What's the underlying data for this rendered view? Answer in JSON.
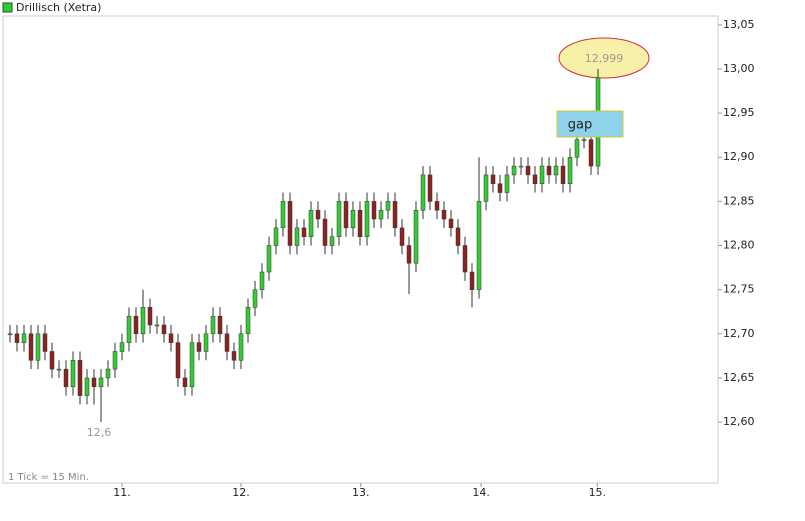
{
  "chart_data": {
    "type": "candlestick",
    "name": "Drillisch (Xetra)",
    "up_color": "#33cc33",
    "down_color": "#8b2323",
    "x": [
      1,
      2,
      3,
      4,
      5,
      6,
      7,
      8,
      9,
      10,
      11,
      12,
      13,
      14,
      15,
      16,
      17,
      18,
      19,
      20,
      21,
      22,
      23,
      24,
      25,
      26,
      27,
      28,
      29,
      30,
      31,
      32,
      33,
      34,
      35,
      36,
      37,
      38,
      39,
      40,
      41,
      42,
      43,
      44,
      45,
      46,
      47,
      48,
      49,
      50,
      51,
      52,
      53,
      54,
      55,
      56,
      57,
      58,
      59,
      60,
      61,
      62,
      63,
      64,
      65,
      66,
      67,
      68,
      69,
      70,
      71,
      72,
      73,
      74,
      75,
      76,
      77,
      78,
      79,
      80,
      81,
      82,
      83,
      84,
      85
    ],
    "open": [
      12.7,
      12.7,
      12.69,
      12.7,
      12.67,
      12.7,
      12.68,
      12.66,
      12.66,
      12.64,
      12.67,
      12.63,
      12.65,
      12.64,
      12.65,
      12.66,
      12.68,
      12.69,
      12.72,
      12.7,
      12.73,
      12.71,
      12.71,
      12.7,
      12.69,
      12.65,
      12.64,
      12.69,
      12.68,
      12.7,
      12.72,
      12.7,
      12.68,
      12.67,
      12.7,
      12.73,
      12.75,
      12.77,
      12.8,
      12.82,
      12.85,
      12.8,
      12.82,
      12.81,
      12.84,
      12.83,
      12.8,
      12.81,
      12.85,
      12.82,
      12.84,
      12.81,
      12.85,
      12.83,
      12.84,
      12.85,
      12.82,
      12.8,
      12.78,
      12.84,
      12.88,
      12.85,
      12.84,
      12.83,
      12.82,
      12.8,
      12.77,
      12.75,
      12.85,
      12.88,
      12.87,
      12.86,
      12.88,
      12.89,
      12.89,
      12.88,
      12.87,
      12.89,
      12.88,
      12.89,
      12.87,
      12.9,
      12.92,
      12.92,
      12.89
    ],
    "high": [
      12.71,
      12.71,
      12.71,
      12.71,
      12.71,
      12.71,
      12.69,
      12.67,
      12.67,
      12.68,
      12.68,
      12.66,
      12.66,
      12.66,
      12.67,
      12.69,
      12.7,
      12.73,
      12.73,
      12.75,
      12.74,
      12.72,
      12.72,
      12.71,
      12.7,
      12.66,
      12.7,
      12.7,
      12.71,
      12.73,
      12.73,
      12.71,
      12.69,
      12.71,
      12.74,
      12.76,
      12.78,
      12.81,
      12.83,
      12.86,
      12.86,
      12.83,
      12.83,
      12.85,
      12.85,
      12.84,
      12.82,
      12.86,
      12.86,
      12.85,
      12.85,
      12.86,
      12.86,
      12.85,
      12.86,
      12.86,
      12.83,
      12.81,
      12.85,
      12.89,
      12.89,
      12.86,
      12.85,
      12.84,
      12.83,
      12.81,
      12.78,
      12.9,
      12.89,
      12.89,
      12.88,
      12.89,
      12.9,
      12.9,
      12.9,
      12.89,
      12.9,
      12.9,
      12.9,
      12.9,
      12.91,
      12.93,
      12.93,
      12.93,
      13.0
    ],
    "low": [
      12.69,
      12.68,
      12.68,
      12.66,
      12.66,
      12.67,
      12.65,
      12.65,
      12.63,
      12.63,
      12.62,
      12.62,
      12.62,
      12.6,
      12.64,
      12.65,
      12.67,
      12.68,
      12.69,
      12.69,
      12.7,
      12.7,
      12.69,
      12.68,
      12.64,
      12.63,
      12.63,
      12.67,
      12.67,
      12.69,
      12.69,
      12.67,
      12.66,
      12.66,
      12.69,
      12.72,
      12.74,
      12.76,
      12.79,
      12.81,
      12.79,
      12.79,
      12.8,
      12.8,
      12.82,
      12.79,
      12.79,
      12.8,
      12.81,
      12.81,
      12.8,
      12.8,
      12.82,
      12.82,
      12.83,
      12.81,
      12.79,
      12.745,
      12.77,
      12.83,
      12.84,
      12.83,
      12.82,
      12.81,
      12.79,
      12.76,
      12.73,
      12.74,
      12.84,
      12.86,
      12.85,
      12.85,
      12.87,
      12.88,
      12.87,
      12.86,
      12.86,
      12.87,
      12.87,
      12.86,
      12.86,
      12.89,
      12.91,
      12.88,
      12.88
    ],
    "close": [
      12.7,
      12.69,
      12.7,
      12.67,
      12.7,
      12.68,
      12.66,
      12.66,
      12.64,
      12.67,
      12.63,
      12.65,
      12.64,
      12.65,
      12.66,
      12.68,
      12.69,
      12.72,
      12.7,
      12.73,
      12.71,
      12.71,
      12.7,
      12.69,
      12.65,
      12.64,
      12.69,
      12.68,
      12.7,
      12.72,
      12.7,
      12.68,
      12.67,
      12.7,
      12.73,
      12.75,
      12.77,
      12.8,
      12.82,
      12.85,
      12.8,
      12.82,
      12.81,
      12.84,
      12.83,
      12.8,
      12.81,
      12.85,
      12.82,
      12.84,
      12.81,
      12.85,
      12.83,
      12.84,
      12.85,
      12.82,
      12.8,
      12.78,
      12.84,
      12.88,
      12.85,
      12.84,
      12.83,
      12.82,
      12.8,
      12.77,
      12.75,
      12.85,
      12.88,
      12.87,
      12.86,
      12.88,
      12.89,
      12.89,
      12.88,
      12.87,
      12.89,
      12.88,
      12.89,
      12.87,
      12.9,
      12.92,
      12.92,
      12.89,
      12.99
    ],
    "xlim": [
      0,
      102.14
    ],
    "xticks": [
      {
        "value": 17,
        "label": "11."
      },
      {
        "value": 34,
        "label": "12."
      },
      {
        "value": 51.1,
        "label": "13."
      },
      {
        "value": 68.3,
        "label": "14."
      },
      {
        "value": 84.9,
        "label": "15."
      }
    ],
    "ylim": [
      12.531,
      13.06
    ],
    "yticks": [
      {
        "value": 12.6,
        "label": "12,60"
      },
      {
        "value": 12.65,
        "label": "12,65"
      },
      {
        "value": 12.7,
        "label": "12,70"
      },
      {
        "value": 12.75,
        "label": "12,75"
      },
      {
        "value": 12.8,
        "label": "12,80"
      },
      {
        "value": 12.85,
        "label": "12,85"
      },
      {
        "value": 12.9,
        "label": "12,90"
      },
      {
        "value": 12.95,
        "label": "12,95"
      },
      {
        "value": 13.0,
        "label": "13,00"
      },
      {
        "value": 13.05,
        "label": "13,05"
      }
    ],
    "annotations": {
      "high_label": "12,999",
      "low_label": "12,6",
      "gap": "gap",
      "interval": "1 Tick = 15 Min."
    }
  }
}
